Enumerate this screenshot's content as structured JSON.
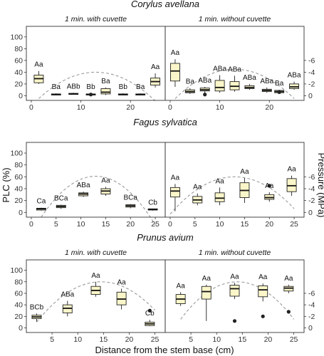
{
  "figure": {
    "y_left_label": "PLC (%)",
    "y_right_label": "Pressure (MPa)",
    "x_label": "Distance from the stem base (cm)"
  },
  "chart_data": [
    {
      "type": "box",
      "title": "Corylus avellana",
      "ylim": [
        -8,
        118
      ],
      "y_ticks": [
        0,
        20,
        40,
        60,
        80,
        100
      ],
      "y2_ticks": [
        "0",
        "-2",
        "-4",
        "-6"
      ],
      "facets": [
        {
          "title": "1 min. with cuvette",
          "xlim": [
            -1,
            27
          ],
          "x_ticks": [
            0,
            10,
            20
          ],
          "parabola": {
            "peak_x": 13,
            "peak_y": 40,
            "base_y": -5,
            "x_start": 1.5,
            "x_end": 25
          },
          "boxes": [
            {
              "x": 1.5,
              "min": 20,
              "q1": 22,
              "median": 29,
              "q3": 35,
              "max": 42,
              "label": "Aa"
            },
            {
              "x": 5,
              "min": 1,
              "q1": 1.5,
              "median": 2,
              "q3": 3,
              "max": 4,
              "label": "Ba"
            },
            {
              "x": 8.5,
              "min": 2,
              "q1": 2.5,
              "median": 3,
              "q3": 4,
              "max": 5,
              "label": "ABb"
            },
            {
              "x": 12,
              "min": 1,
              "q1": 1.5,
              "median": 2,
              "q3": 3,
              "max": 4,
              "label": "Bb",
              "outliers": [
                2
              ]
            },
            {
              "x": 15,
              "min": 1,
              "q1": 3,
              "median": 6,
              "q3": 12,
              "max": 14,
              "label": "Ba"
            },
            {
              "x": 18.5,
              "min": 1,
              "q1": 1.5,
              "median": 2,
              "q3": 3,
              "max": 4,
              "label": "Bb"
            },
            {
              "x": 22,
              "min": 1,
              "q1": 1.5,
              "median": 2,
              "q3": 3,
              "max": 4,
              "label": "Ba"
            },
            {
              "x": 25,
              "min": 14,
              "q1": 18,
              "median": 24,
              "q3": 30,
              "max": 38,
              "label": "Aa"
            }
          ]
        },
        {
          "title": "1 min. without cuvette",
          "xlim": [
            -1,
            27
          ],
          "x_ticks": [
            0,
            10,
            20
          ],
          "parabola": {
            "peak_x": 13,
            "peak_y": 45,
            "base_y": -5,
            "x_start": 1,
            "x_end": 25
          },
          "boxes": [
            {
              "x": 1,
              "min": 15,
              "q1": 25,
              "median": 42,
              "q3": 55,
              "max": 62,
              "label": "Aa"
            },
            {
              "x": 4,
              "min": 3,
              "q1": 5,
              "median": 7,
              "q3": 10,
              "max": 13,
              "label": "Ba"
            },
            {
              "x": 7,
              "min": 4,
              "q1": 8,
              "median": 10,
              "q3": 13,
              "max": 15,
              "label": "ABa",
              "outliers": [
                2
              ]
            },
            {
              "x": 10,
              "min": 5,
              "q1": 8,
              "median": 14,
              "q3": 26,
              "max": 35,
              "label": "ABa"
            },
            {
              "x": 13,
              "min": 7,
              "q1": 10,
              "median": 16,
              "q3": 24,
              "max": 34,
              "label": "ABa"
            },
            {
              "x": 16,
              "min": 10,
              "q1": 12,
              "median": 14,
              "q3": 17,
              "max": 20,
              "label": "ABa"
            },
            {
              "x": 19.5,
              "min": 5,
              "q1": 7,
              "median": 9,
              "q3": 11,
              "max": 14,
              "label": "ABa"
            },
            {
              "x": 22,
              "min": 3,
              "q1": 5,
              "median": 7,
              "q3": 9,
              "max": 10,
              "label": "Ba",
              "outliers": [
                6
              ]
            },
            {
              "x": 25,
              "min": 10,
              "q1": 12,
              "median": 15,
              "q3": 20,
              "max": 24,
              "label": "ABa"
            }
          ]
        }
      ]
    },
    {
      "type": "box",
      "title": "Fagus sylvatica",
      "ylim": [
        -8,
        118
      ],
      "y_ticks": [
        0,
        20,
        40,
        60,
        80,
        100
      ],
      "y2_ticks": [
        "0",
        "-2",
        "-4",
        "-6"
      ],
      "facets": [
        {
          "title": "",
          "xlim": [
            -1,
            27
          ],
          "x_ticks": [
            0,
            5,
            10,
            15,
            20,
            25
          ],
          "parabola": {
            "peak_x": 13,
            "peak_y": 61,
            "base_y": -8,
            "x_start": 2,
            "x_end": 25
          },
          "boxes": [
            {
              "x": 2,
              "min": 3,
              "q1": 4,
              "median": 6,
              "q3": 7,
              "max": 8,
              "label": "Ca"
            },
            {
              "x": 6,
              "min": 6,
              "q1": 8,
              "median": 10,
              "q3": 12,
              "max": 13,
              "label": "BCa"
            },
            {
              "x": 10.5,
              "min": 26,
              "q1": 28,
              "median": 31,
              "q3": 33,
              "max": 35,
              "label": "ABa"
            },
            {
              "x": 15,
              "min": 28,
              "q1": 31,
              "median": 36,
              "q3": 40,
              "max": 43,
              "label": "Aa"
            },
            {
              "x": 20,
              "min": 7,
              "q1": 9,
              "median": 11,
              "q3": 13,
              "max": 14,
              "label": "BCa"
            },
            {
              "x": 24.5,
              "min": 3,
              "q1": 4,
              "median": 5,
              "q3": 6,
              "max": 6,
              "label": "Cb"
            }
          ]
        },
        {
          "title": "",
          "xlim": [
            -1,
            27
          ],
          "x_ticks": [
            0,
            5,
            10,
            15,
            20,
            25
          ],
          "parabola": {
            "peak_x": 13,
            "peak_y": 60,
            "base_y": -3,
            "x_start": 0,
            "x_end": 25
          },
          "boxes": [
            {
              "x": 1,
              "min": 2,
              "q1": 26,
              "median": 36,
              "q3": 42,
              "max": 48,
              "label": "Aa"
            },
            {
              "x": 5.5,
              "min": 12,
              "q1": 16,
              "median": 21,
              "q3": 27,
              "max": 32,
              "label": "Aa"
            },
            {
              "x": 10,
              "min": 12,
              "q1": 18,
              "median": 24,
              "q3": 33,
              "max": 42,
              "label": "Aa"
            },
            {
              "x": 15,
              "min": 16,
              "q1": 25,
              "median": 37,
              "q3": 50,
              "max": 58,
              "label": "Aa"
            },
            {
              "x": 20,
              "min": 18,
              "q1": 22,
              "median": 25,
              "q3": 30,
              "max": 34,
              "label": "Aa",
              "outliers": [
                45
              ]
            },
            {
              "x": 24.5,
              "min": 28,
              "q1": 35,
              "median": 45,
              "q3": 57,
              "max": 62,
              "label": "Aa"
            }
          ]
        }
      ]
    },
    {
      "type": "box",
      "title": "Prunus avium",
      "ylim": [
        -8,
        118
      ],
      "y_ticks": [
        0,
        20,
        40,
        60,
        80,
        100
      ],
      "y2_ticks": [
        "0",
        "-2",
        "-4",
        "-6"
      ],
      "facets": [
        {
          "title": "1 min. with cuvette",
          "xlim": [
            0,
            27
          ],
          "x_ticks": [
            5,
            10,
            15,
            20,
            25
          ],
          "parabola": {
            "peak_x": 14.5,
            "peak_y": 80,
            "base_y": 10,
            "x_start": 2,
            "x_end": 25
          },
          "boxes": [
            {
              "x": 2,
              "min": 11,
              "q1": 16,
              "median": 19,
              "q3": 22,
              "max": 25,
              "label": "BCb"
            },
            {
              "x": 8,
              "min": 20,
              "q1": 26,
              "median": 34,
              "q3": 40,
              "max": 47,
              "label": "ABa"
            },
            {
              "x": 13.5,
              "min": 54,
              "q1": 58,
              "median": 65,
              "q3": 72,
              "max": 80,
              "label": "Aa"
            },
            {
              "x": 18.5,
              "min": 32,
              "q1": 40,
              "median": 50,
              "q3": 62,
              "max": 68,
              "label": "Aa"
            },
            {
              "x": 24,
              "min": 3,
              "q1": 4,
              "median": 7,
              "q3": 10,
              "max": 14,
              "label": "Cb",
              "outliers": [
                30
              ]
            }
          ]
        },
        {
          "title": "1 min. without cuvette",
          "xlim": [
            0,
            27
          ],
          "x_ticks": [
            5,
            10,
            15,
            20,
            25
          ],
          "parabola": {
            "peak_x": 14,
            "peak_y": 80,
            "base_y": 15,
            "x_start": 3,
            "x_end": 25
          },
          "boxes": [
            {
              "x": 3,
              "min": 38,
              "q1": 42,
              "median": 50,
              "q3": 58,
              "max": 62,
              "label": "Aa"
            },
            {
              "x": 8,
              "min": 12,
              "q1": 50,
              "median": 63,
              "q3": 72,
              "max": 75,
              "label": "Aa"
            },
            {
              "x": 13.5,
              "min": 50,
              "q1": 55,
              "median": 68,
              "q3": 74,
              "max": 78,
              "label": "Aa",
              "outliers": [
                12
              ]
            },
            {
              "x": 19,
              "min": 46,
              "q1": 54,
              "median": 66,
              "q3": 73,
              "max": 77,
              "label": "Aa",
              "outliers": [
                20
              ]
            },
            {
              "x": 24,
              "min": 60,
              "q1": 64,
              "median": 69,
              "q3": 72,
              "max": 75,
              "label": "Aa",
              "outliers": [
                28
              ]
            }
          ]
        }
      ]
    }
  ]
}
